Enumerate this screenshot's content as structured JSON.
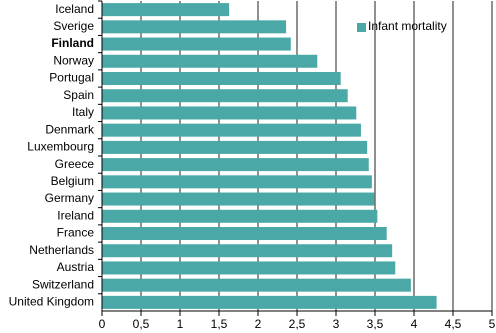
{
  "chart_data": {
    "type": "bar",
    "orientation": "horizontal",
    "categories": [
      "Iceland",
      "Sverige",
      "Finland",
      "Norway",
      "Portugal",
      "Spain",
      "Italy",
      "Denmark",
      "Luxembourg",
      "Greece",
      "Belgium",
      "Germany",
      "Ireland",
      "France",
      "Netherlands",
      "Austria",
      "Switzerland",
      "United Kingdom"
    ],
    "series": [
      {
        "name": "Infant mortality",
        "color": "#4aa9a6",
        "values": [
          1.63,
          2.36,
          2.42,
          2.76,
          3.06,
          3.15,
          3.26,
          3.32,
          3.4,
          3.42,
          3.46,
          3.49,
          3.53,
          3.65,
          3.72,
          3.76,
          3.96,
          4.29
        ]
      }
    ],
    "xlim": [
      0,
      5
    ],
    "xticks": [
      0,
      {
        "value": 0.5,
        "label": "0,5"
      },
      1,
      {
        "value": 1.5,
        "label": "1,5"
      },
      2,
      {
        "value": 2.5,
        "label": "2,5"
      },
      3,
      {
        "value": 3.5,
        "label": "3,5"
      },
      4,
      {
        "value": 4.5,
        "label": "4,5"
      },
      5
    ],
    "grid": true,
    "legend": "top-right"
  }
}
